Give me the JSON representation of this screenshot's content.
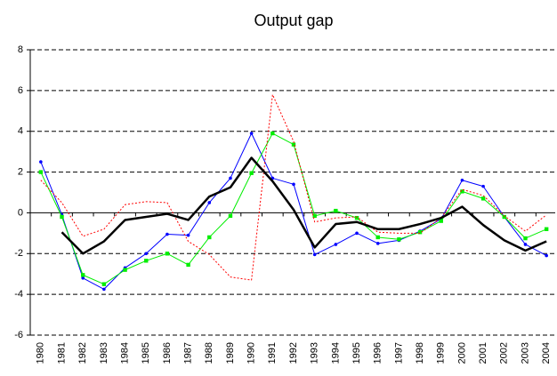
{
  "chart_data": {
    "type": "line",
    "title": "Output gap",
    "categories": [
      "1980",
      "1981",
      "1982",
      "1983",
      "1984",
      "1985",
      "1986",
      "1987",
      "1988",
      "1989",
      "1990",
      "1991",
      "1992",
      "1993",
      "1994",
      "1995",
      "1996",
      "1997",
      "1998",
      "1999",
      "2000",
      "2001",
      "2002",
      "2003",
      "2004"
    ],
    "series": [
      {
        "color": "#0000ff",
        "marker": "circle",
        "style": "solid",
        "width": 1,
        "values": [
          2.5,
          -0.1,
          -3.2,
          -3.75,
          -2.7,
          -2.0,
          -1.05,
          -1.1,
          0.5,
          1.7,
          3.9,
          1.7,
          1.4,
          -2.05,
          -1.55,
          -1.0,
          -1.5,
          -1.35,
          -0.9,
          -0.3,
          1.6,
          1.3,
          -0.2,
          -1.55,
          -2.1
        ]
      },
      {
        "color": "#00ee00",
        "marker": "square",
        "style": "solid",
        "width": 1,
        "values": [
          2.0,
          -0.2,
          -3.05,
          -3.5,
          -2.8,
          -2.35,
          -2.0,
          -2.55,
          -1.2,
          -0.15,
          1.95,
          3.9,
          3.35,
          -0.15,
          0.1,
          -0.25,
          -1.2,
          -1.3,
          -0.95,
          -0.4,
          1.05,
          0.7,
          -0.2,
          -1.25,
          -0.8
        ]
      },
      {
        "color": "#ff0000",
        "marker": "none",
        "style": "dotted",
        "width": 1,
        "values": [
          1.6,
          0.5,
          -1.15,
          -0.8,
          0.4,
          0.55,
          0.5,
          -1.4,
          -2.05,
          -3.15,
          -3.3,
          5.8,
          3.5,
          -0.45,
          -0.25,
          -0.2,
          -0.95,
          -1.0,
          -1.0,
          -0.25,
          1.15,
          0.85,
          -0.15,
          -0.9,
          -0.1
        ]
      },
      {
        "color": "#000000",
        "marker": "none",
        "style": "solid",
        "width": 2.5,
        "values": [
          null,
          -0.95,
          -2.0,
          -1.4,
          -0.35,
          -0.2,
          -0.05,
          -0.35,
          0.8,
          1.25,
          2.7,
          1.55,
          0.15,
          -1.7,
          -0.55,
          -0.45,
          -0.8,
          -0.8,
          -0.55,
          -0.25,
          0.3,
          -0.6,
          -1.35,
          -1.85,
          -1.4
        ]
      }
    ],
    "ylim": [
      -6,
      8
    ],
    "yticks": [
      -6,
      -4,
      -2,
      0,
      2,
      4,
      6,
      8
    ],
    "grid": true
  }
}
